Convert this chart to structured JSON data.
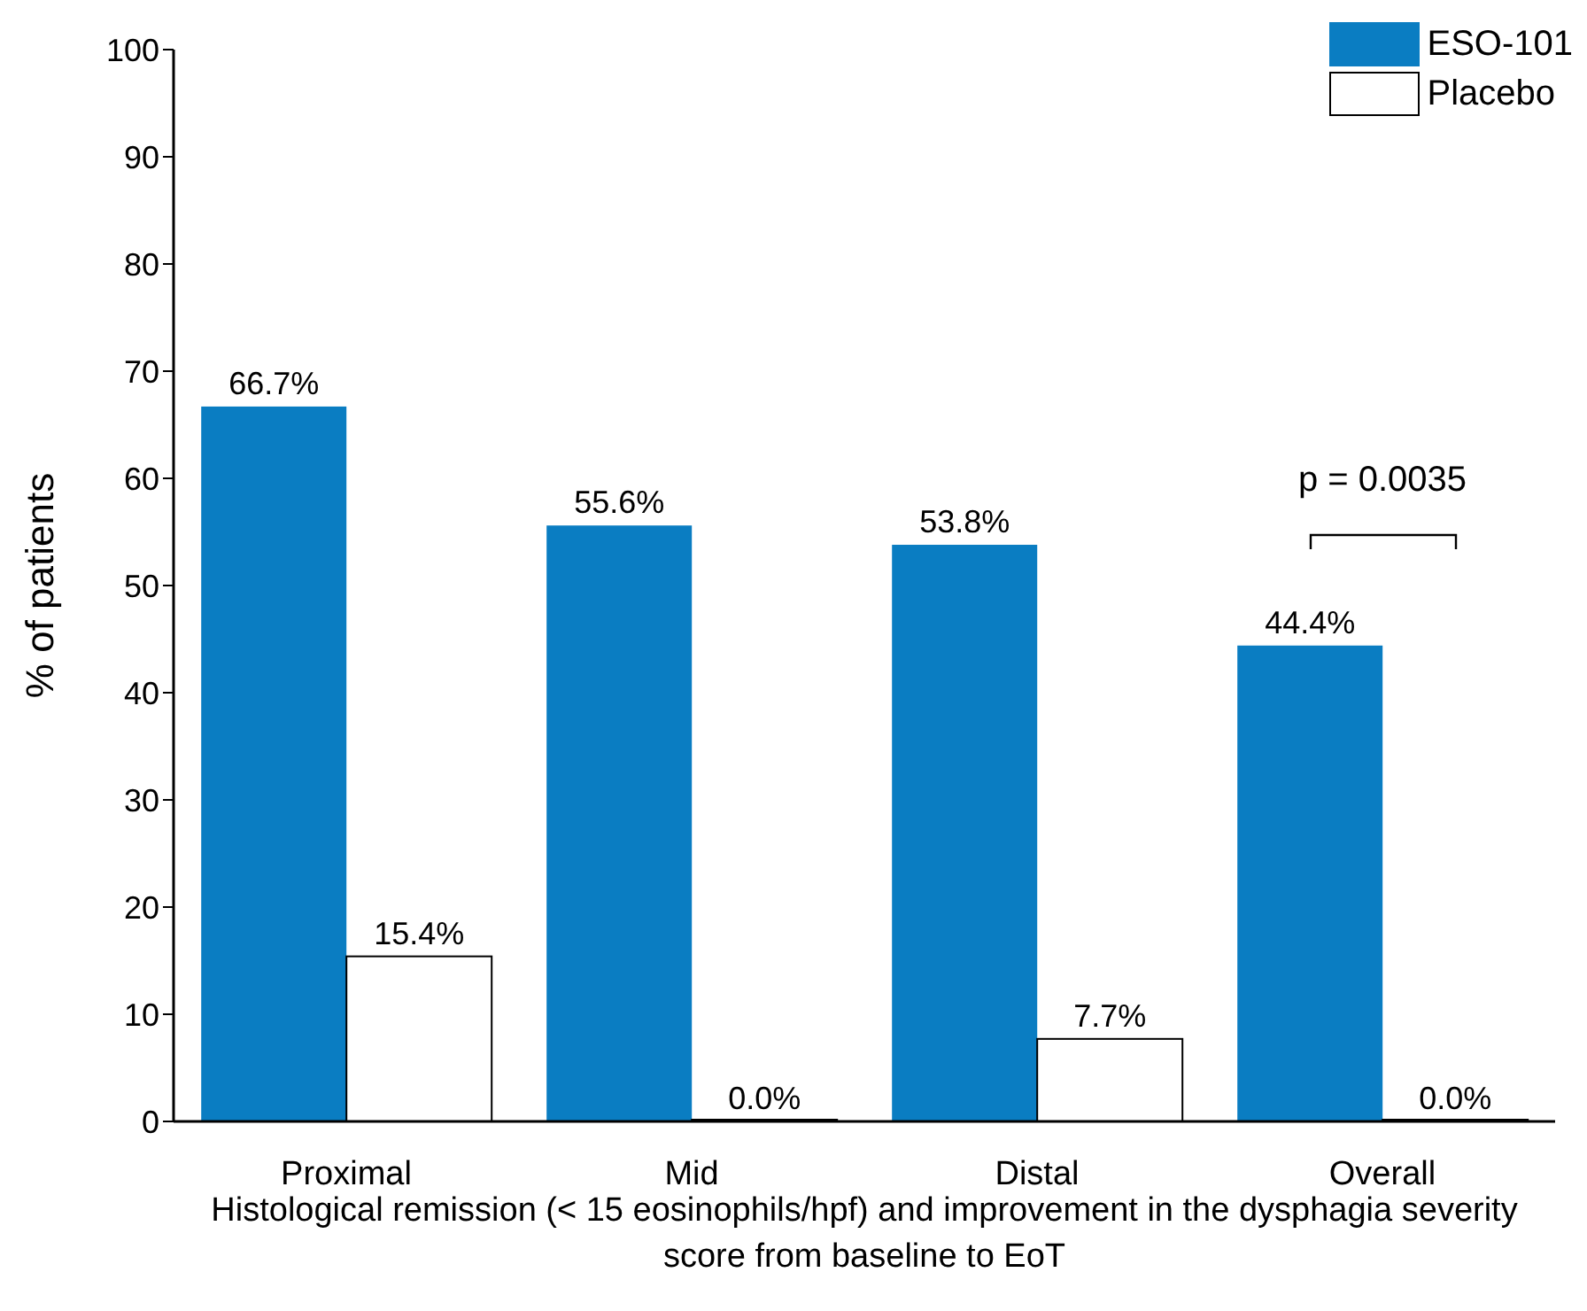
{
  "chart_data": {
    "type": "bar",
    "xlabel": "Histological remission (< 15 eosinophils/hpf) and improvement in the dysphagia severity score from baseline to EoT",
    "ylabel": "% of patients",
    "categories": [
      "Proximal",
      "Mid",
      "Distal",
      "Overall"
    ],
    "series": [
      {
        "name": "ESO-101",
        "color": "#0a7dc2",
        "values": [
          66.7,
          55.6,
          53.8,
          44.4
        ],
        "value_labels": [
          "66.7%",
          "55.6%",
          "53.8%",
          "44.4%"
        ]
      },
      {
        "name": "Placebo",
        "color": "#ffffff",
        "values": [
          15.4,
          0,
          7.7,
          0
        ],
        "value_labels": [
          "15.4%",
          "0.0%",
          "7.7%",
          "0.0%"
        ]
      }
    ],
    "ylim": [
      0,
      100
    ],
    "yticks": [
      0,
      10,
      20,
      30,
      40,
      50,
      60,
      70,
      80,
      90,
      100
    ],
    "grid": false,
    "legend": "top right",
    "annotations": [
      "p = 0.0035"
    ]
  }
}
